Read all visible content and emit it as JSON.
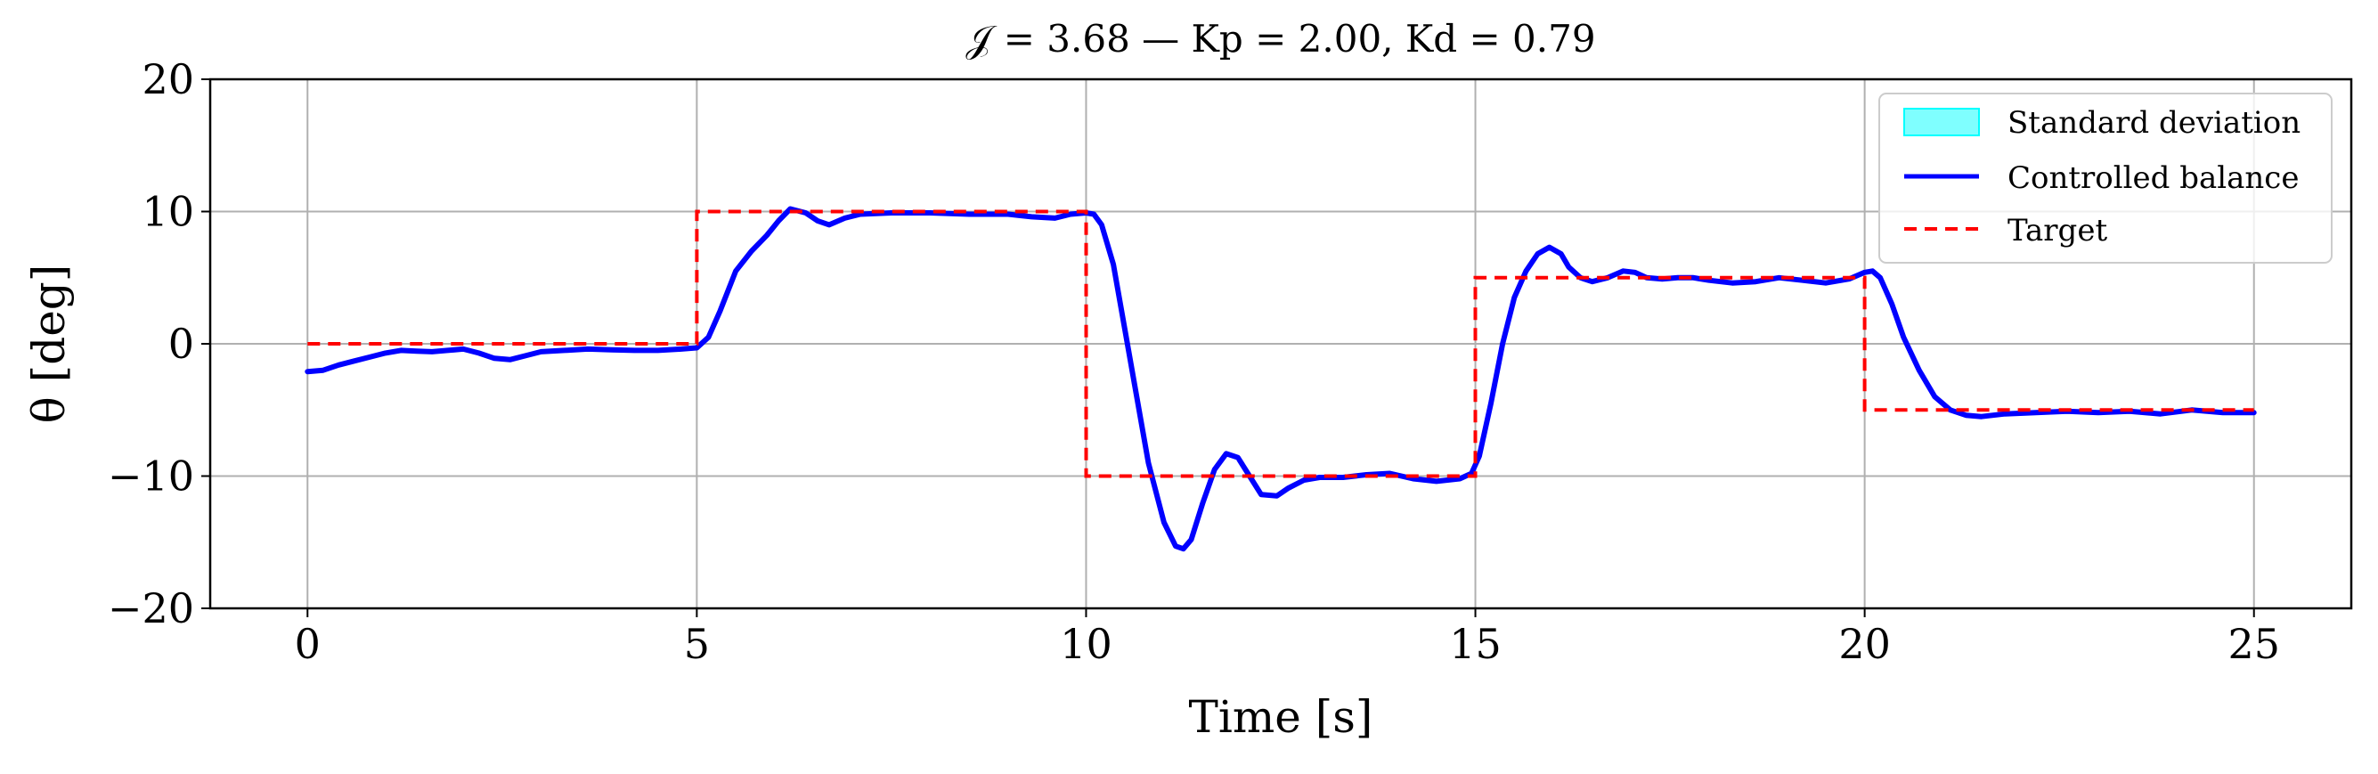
{
  "chart_data": {
    "type": "line",
    "title": "𝒥 = 3.68 — Kp = 2.00, Kd = 0.79",
    "xlabel": "Time [s]",
    "ylabel": "θ [deg]",
    "xlim": [
      -1.25,
      26.25
    ],
    "ylim": [
      -20,
      20
    ],
    "x_ticks": [
      0,
      5,
      10,
      15,
      20,
      25
    ],
    "x_tick_labels": [
      "0",
      "5",
      "10",
      "15",
      "20",
      "25"
    ],
    "y_ticks": [
      -20,
      -10,
      0,
      10,
      20
    ],
    "y_tick_labels": [
      "−20",
      "−10",
      "0",
      "10",
      "20"
    ],
    "grid": true,
    "legend_position": "top-right",
    "legend": [
      {
        "label": "Standard deviation",
        "kind": "patch",
        "color": "#00ffff"
      },
      {
        "label": "Controlled balance",
        "kind": "solid",
        "color": "#0000ff"
      },
      {
        "label": "Target",
        "kind": "dashed",
        "color": "#ff0000"
      }
    ],
    "series": [
      {
        "name": "Target",
        "style": "dashed",
        "color": "#ff0000",
        "x": [
          0,
          5,
          5,
          10,
          10,
          15,
          15,
          20,
          20,
          25
        ],
        "y": [
          0,
          0,
          10,
          10,
          -10,
          -10,
          5,
          5,
          -5,
          -5
        ]
      },
      {
        "name": "Controlled balance",
        "style": "solid",
        "color": "#0000ff",
        "x": [
          0,
          0.2,
          0.4,
          0.6,
          0.8,
          1.0,
          1.2,
          1.4,
          1.6,
          1.8,
          2.0,
          2.2,
          2.4,
          2.6,
          2.8,
          3.0,
          3.3,
          3.6,
          3.9,
          4.2,
          4.5,
          4.8,
          5.0,
          5.15,
          5.3,
          5.5,
          5.7,
          5.9,
          6.05,
          6.2,
          6.4,
          6.55,
          6.7,
          6.9,
          7.1,
          7.5,
          8.0,
          8.5,
          9.0,
          9.3,
          9.6,
          9.8,
          10.0,
          10.1,
          10.2,
          10.35,
          10.5,
          10.65,
          10.8,
          11.0,
          11.15,
          11.25,
          11.35,
          11.5,
          11.65,
          11.8,
          11.95,
          12.1,
          12.25,
          12.45,
          12.6,
          12.8,
          13.0,
          13.3,
          13.6,
          13.9,
          14.2,
          14.5,
          14.8,
          14.95,
          15.05,
          15.2,
          15.35,
          15.5,
          15.65,
          15.8,
          15.95,
          16.1,
          16.2,
          16.35,
          16.5,
          16.7,
          16.9,
          17.05,
          17.2,
          17.4,
          17.6,
          17.8,
          18.0,
          18.3,
          18.6,
          18.9,
          19.2,
          19.5,
          19.8,
          20.0,
          20.1,
          20.2,
          20.35,
          20.5,
          20.7,
          20.9,
          21.1,
          21.3,
          21.5,
          21.8,
          22.2,
          22.6,
          23.0,
          23.4,
          23.8,
          24.2,
          24.6,
          25.0
        ],
        "y": [
          -2.1,
          -2.0,
          -1.6,
          -1.3,
          -1.0,
          -0.7,
          -0.5,
          -0.55,
          -0.6,
          -0.5,
          -0.4,
          -0.7,
          -1.1,
          -1.2,
          -0.9,
          -0.6,
          -0.5,
          -0.4,
          -0.45,
          -0.5,
          -0.5,
          -0.4,
          -0.3,
          0.5,
          2.5,
          5.5,
          7.0,
          8.2,
          9.3,
          10.2,
          9.9,
          9.3,
          9.0,
          9.5,
          9.8,
          9.9,
          9.9,
          9.8,
          9.8,
          9.6,
          9.5,
          9.8,
          9.9,
          9.8,
          9.0,
          6.0,
          1.0,
          -4.0,
          -9.0,
          -13.5,
          -15.3,
          -15.5,
          -14.8,
          -12.0,
          -9.5,
          -8.3,
          -8.6,
          -10.0,
          -11.4,
          -11.5,
          -10.9,
          -10.3,
          -10.1,
          -10.1,
          -9.9,
          -9.8,
          -10.2,
          -10.4,
          -10.2,
          -9.8,
          -8.5,
          -4.5,
          0.0,
          3.5,
          5.5,
          6.8,
          7.3,
          6.8,
          5.8,
          5.0,
          4.7,
          5.0,
          5.5,
          5.4,
          5.0,
          4.9,
          5.0,
          5.0,
          4.8,
          4.6,
          4.7,
          5.0,
          4.8,
          4.6,
          4.9,
          5.4,
          5.5,
          5.0,
          3.0,
          0.5,
          -2.0,
          -4.0,
          -5.0,
          -5.4,
          -5.5,
          -5.3,
          -5.2,
          -5.1,
          -5.2,
          -5.1,
          -5.3,
          -5.0,
          -5.2,
          -5.2
        ]
      }
    ]
  }
}
